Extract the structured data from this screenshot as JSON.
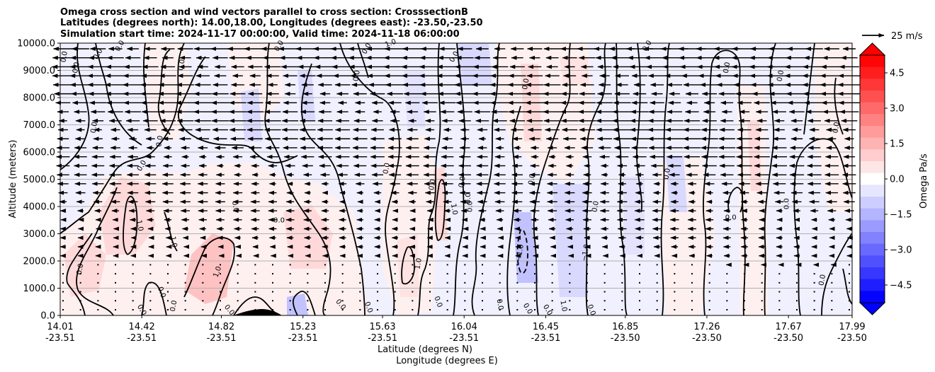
{
  "chart_data": {
    "type": "contour",
    "title_lines": [
      "Omega cross section and wind vectors parallel to cross section: CrosssectionB",
      "Latitudes (degrees north): 14.00,18.00, Longitudes (degrees east): -23.50,-23.50",
      "Simulation start time: 2024-11-17 00:00:00, Valid time: 2024-11-18 06:00:00"
    ],
    "ylabel": "Altitude (meters)",
    "xlabel_lines": [
      "Latitude (degrees N)",
      "Longitude (degrees E)"
    ],
    "yticks": [
      "0.0",
      "1000.0",
      "2000.0",
      "3000.0",
      "4000.0",
      "5000.0",
      "6000.0",
      "7000.0",
      "8000.0",
      "9000.0",
      "10000.0"
    ],
    "ylim": [
      0,
      10000
    ],
    "xticks": [
      {
        "lat": "14.01",
        "lon": "-23.51"
      },
      {
        "lat": "14.42",
        "lon": "-23.51"
      },
      {
        "lat": "14.82",
        "lon": "-23.51"
      },
      {
        "lat": "15.23",
        "lon": "-23.51"
      },
      {
        "lat": "15.63",
        "lon": "-23.51"
      },
      {
        "lat": "16.04",
        "lon": "-23.51"
      },
      {
        "lat": "16.45",
        "lon": "-23.51"
      },
      {
        "lat": "16.85",
        "lon": "-23.50"
      },
      {
        "lat": "17.26",
        "lon": "-23.50"
      },
      {
        "lat": "17.67",
        "lon": "-23.50"
      },
      {
        "lat": "17.99",
        "lon": "-23.50"
      }
    ],
    "xlim": [
      14.01,
      17.99
    ],
    "grid": "horizontal",
    "colorbar": {
      "label": "Omega Pa/s",
      "ticks": [
        "4.5",
        "3.0",
        "1.5",
        "0.0",
        "−1.5",
        "−3.0",
        "−4.5"
      ],
      "range": [
        -5.25,
        5.25
      ],
      "positive_color": "#ff0000",
      "negative_color": "#0000ff"
    },
    "quiver_key": "25 m/s",
    "contour_labels": [
      {
        "text": "0.0",
        "lat": 14.03,
        "alt": 9500,
        "rot": -80
      },
      {
        "text": "0.0",
        "lat": 14.09,
        "alt": 9100,
        "rot": -80
      },
      {
        "text": "0.0",
        "lat": 14.18,
        "alt": 6900,
        "rot": -80
      },
      {
        "text": "0.0",
        "lat": 14.11,
        "alt": 1700,
        "rot": -80
      },
      {
        "text": "0.0",
        "lat": 14.2,
        "alt": 9600,
        "rot": -60
      },
      {
        "text": "0.0",
        "lat": 14.31,
        "alt": 9900,
        "rot": -60
      },
      {
        "text": "0.0",
        "lat": 14.42,
        "alt": 5500,
        "rot": -60
      },
      {
        "text": "0.0",
        "lat": 14.51,
        "alt": 6400,
        "rot": -80
      },
      {
        "text": "1.0",
        "lat": 14.41,
        "alt": 3300,
        "rot": 80
      },
      {
        "text": "1.0",
        "lat": 14.58,
        "alt": 2700,
        "rot": 80
      },
      {
        "text": "0.0",
        "lat": 14.52,
        "alt": 850,
        "rot": 70
      },
      {
        "text": "0.0",
        "lat": 14.42,
        "alt": 200,
        "rot": 60
      },
      {
        "text": "0.0",
        "lat": 14.58,
        "alt": 350,
        "rot": -80
      },
      {
        "text": "0.0",
        "lat": 14.62,
        "alt": 9200,
        "rot": -80
      },
      {
        "text": "1.0",
        "lat": 14.8,
        "alt": 1600,
        "rot": -70
      },
      {
        "text": "0.0",
        "lat": 14.86,
        "alt": 200,
        "rot": 50
      },
      {
        "text": "0.0",
        "lat": 14.89,
        "alt": 4000,
        "rot": 80
      },
      {
        "text": "0.0",
        "lat": 15.11,
        "alt": 3500,
        "rot": 0
      },
      {
        "text": "0.0",
        "lat": 15.11,
        "alt": 9900,
        "rot": -60
      },
      {
        "text": "0.0",
        "lat": 15.42,
        "alt": 400,
        "rot": 50
      },
      {
        "text": "0.0",
        "lat": 15.56,
        "alt": 300,
        "rot": 70
      },
      {
        "text": "0.0",
        "lat": 15.5,
        "alt": 8800,
        "rot": -80
      },
      {
        "text": "0.0",
        "lat": 15.55,
        "alt": 9800,
        "rot": -60
      },
      {
        "text": "1.0",
        "lat": 15.67,
        "alt": 10000,
        "rot": -20
      },
      {
        "text": "0.0",
        "lat": 15.65,
        "alt": 5400,
        "rot": -80
      },
      {
        "text": "0.0",
        "lat": 15.88,
        "alt": 4800,
        "rot": -80
      },
      {
        "text": "1.0",
        "lat": 15.81,
        "alt": 1900,
        "rot": -80
      },
      {
        "text": "0.0",
        "lat": 15.99,
        "alt": 9500,
        "rot": -60
      },
      {
        "text": "1.0",
        "lat": 15.99,
        "alt": 3900,
        "rot": 80
      },
      {
        "text": "0.0",
        "lat": 16.03,
        "alt": 4900,
        "rot": -80
      },
      {
        "text": "0.0",
        "lat": 16.06,
        "alt": 4300,
        "rot": -90
      },
      {
        "text": "0.0",
        "lat": 16.07,
        "alt": 4000,
        "rot": -90
      },
      {
        "text": "0.0",
        "lat": 15.91,
        "alt": 500,
        "rot": 70
      },
      {
        "text": "0.0",
        "lat": 16.22,
        "alt": 400,
        "rot": 80
      },
      {
        "text": "0.0",
        "lat": 16.35,
        "alt": 8500,
        "rot": -80
      },
      {
        "text": "0.0",
        "lat": 16.38,
        "alt": 5000,
        "rot": -80
      },
      {
        "text": "−1.0",
        "lat": 16.32,
        "alt": 2300,
        "rot": -80
      },
      {
        "text": "0.0",
        "lat": 16.36,
        "alt": 250,
        "rot": 60
      },
      {
        "text": "0.0",
        "lat": 16.46,
        "alt": 200,
        "rot": 60
      },
      {
        "text": "1.0",
        "lat": 16.54,
        "alt": 350,
        "rot": 80
      },
      {
        "text": "−1.0",
        "lat": 16.65,
        "alt": 2300,
        "rot": -80
      },
      {
        "text": "0.0",
        "lat": 16.7,
        "alt": 4000,
        "rot": -80
      },
      {
        "text": "0.0",
        "lat": 16.68,
        "alt": 200,
        "rot": 70
      },
      {
        "text": "0.0",
        "lat": 16.96,
        "alt": 9900,
        "rot": -60
      },
      {
        "text": "0.0",
        "lat": 17.06,
        "alt": 5200,
        "rot": -80
      },
      {
        "text": "0.0",
        "lat": 17.36,
        "alt": 9100,
        "rot": -80
      },
      {
        "text": "0.0",
        "lat": 17.38,
        "alt": 3600,
        "rot": 0
      },
      {
        "text": "0.0",
        "lat": 17.63,
        "alt": 8800,
        "rot": -80
      },
      {
        "text": "0.0",
        "lat": 17.66,
        "alt": 4100,
        "rot": -90
      },
      {
        "text": "0.0",
        "lat": 17.91,
        "alt": 6900,
        "rot": -80
      },
      {
        "text": "0.0",
        "lat": 17.84,
        "alt": 1300,
        "rot": -80
      }
    ]
  }
}
